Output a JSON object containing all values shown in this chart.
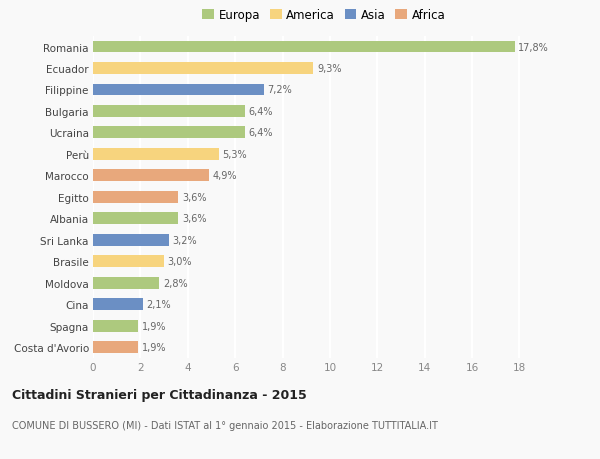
{
  "countries": [
    "Romania",
    "Ecuador",
    "Filippine",
    "Bulgaria",
    "Ucraina",
    "Perù",
    "Marocco",
    "Egitto",
    "Albania",
    "Sri Lanka",
    "Brasile",
    "Moldova",
    "Cina",
    "Spagna",
    "Costa d'Avorio"
  ],
  "values": [
    17.8,
    9.3,
    7.2,
    6.4,
    6.4,
    5.3,
    4.9,
    3.6,
    3.6,
    3.2,
    3.0,
    2.8,
    2.1,
    1.9,
    1.9
  ],
  "labels": [
    "17,8%",
    "9,3%",
    "7,2%",
    "6,4%",
    "6,4%",
    "5,3%",
    "4,9%",
    "3,6%",
    "3,6%",
    "3,2%",
    "3,0%",
    "2,8%",
    "2,1%",
    "1,9%",
    "1,9%"
  ],
  "continents": [
    "Europa",
    "America",
    "Asia",
    "Europa",
    "Europa",
    "America",
    "Africa",
    "Africa",
    "Europa",
    "Asia",
    "America",
    "Europa",
    "Asia",
    "Europa",
    "Africa"
  ],
  "colors": {
    "Europa": "#adc97e",
    "America": "#f7d47e",
    "Asia": "#6b8fc4",
    "Africa": "#e8a87c"
  },
  "legend_order": [
    "Europa",
    "America",
    "Asia",
    "Africa"
  ],
  "title": "Cittadini Stranieri per Cittadinanza - 2015",
  "subtitle": "COMUNE DI BUSSERO (MI) - Dati ISTAT al 1° gennaio 2015 - Elaborazione TUTTITALIA.IT",
  "xlim": [
    0,
    19.5
  ],
  "xticks": [
    0,
    2,
    4,
    6,
    8,
    10,
    12,
    14,
    16,
    18
  ],
  "background_color": "#f9f9f9",
  "grid_color": "#ffffff",
  "bar_height": 0.55
}
